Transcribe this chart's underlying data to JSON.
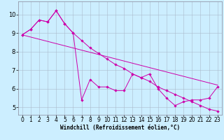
{
  "background_color": "#cceeff",
  "line_color": "#cc00aa",
  "grid_color": "#aabbcc",
  "xlabel": "Windchill (Refroidissement éolien,°C)",
  "xlabel_fontsize": 5.5,
  "tick_fontsize": 5.5,
  "xlim": [
    -0.5,
    23.5
  ],
  "ylim": [
    4.6,
    10.7
  ],
  "yticks": [
    5,
    6,
    7,
    8,
    9,
    10
  ],
  "xticks": [
    0,
    1,
    2,
    3,
    4,
    5,
    6,
    7,
    8,
    9,
    10,
    11,
    12,
    13,
    14,
    15,
    16,
    17,
    18,
    19,
    20,
    21,
    22,
    23
  ],
  "line1_x": [
    0,
    1,
    2,
    3,
    4,
    5,
    6,
    7,
    8,
    9,
    10,
    11,
    12,
    13,
    14,
    15,
    16,
    17,
    18,
    19,
    20,
    21,
    22,
    23
  ],
  "line1_y": [
    8.9,
    9.2,
    9.7,
    9.6,
    10.2,
    9.5,
    9.0,
    5.4,
    6.5,
    6.1,
    6.1,
    5.9,
    5.9,
    6.8,
    6.6,
    6.8,
    6.0,
    5.5,
    5.1,
    5.3,
    5.4,
    5.4,
    5.5,
    6.1
  ],
  "line2_x": [
    0,
    1,
    2,
    3,
    4,
    5,
    6,
    7,
    8,
    9,
    10,
    11,
    12,
    13,
    14,
    15,
    16,
    17,
    18,
    19,
    20,
    21,
    22,
    23
  ],
  "line2_y": [
    8.9,
    9.2,
    9.7,
    9.6,
    10.2,
    9.5,
    9.0,
    8.6,
    8.2,
    7.9,
    7.6,
    7.3,
    7.1,
    6.8,
    6.6,
    6.4,
    6.1,
    5.9,
    5.7,
    5.5,
    5.3,
    5.1,
    4.9,
    4.8
  ],
  "line3_x": [
    0,
    23
  ],
  "line3_y": [
    8.9,
    6.2
  ]
}
